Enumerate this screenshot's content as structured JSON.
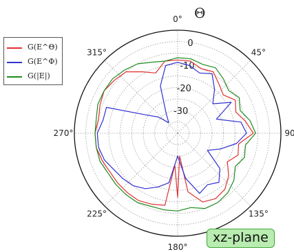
{
  "chart_data": {
    "type": "polar-line",
    "angle_symbol": "Θ",
    "angular_ticks": [
      "0°",
      "45°",
      "90°",
      "135°",
      "180°",
      "225°",
      "270°",
      "315°"
    ],
    "radial_tick_labels": [
      "0",
      "-10",
      "-20",
      "-30"
    ],
    "radial_range_db": [
      -40,
      5
    ],
    "grid": true,
    "legend": {
      "position": "top-left",
      "entries": [
        {
          "label": "G(E^Θ)",
          "color": "#e03030"
        },
        {
          "label": "G(E^Φ)",
          "color": "#3030d0"
        },
        {
          "label": "G(|E|)",
          "color": "#1f8a1f"
        }
      ]
    },
    "annotation": "xz-plane",
    "series": [
      {
        "name": "G(E^Θ)",
        "color": "#e03030",
        "theta_deg": [
          0,
          10,
          20,
          30,
          40,
          50,
          60,
          70,
          80,
          90,
          100,
          110,
          120,
          130,
          140,
          150,
          160,
          170,
          175,
          180,
          185,
          190,
          200,
          210,
          220,
          230,
          240,
          250,
          260,
          270,
          280,
          290,
          300,
          310,
          320,
          330,
          340,
          350,
          360
        ],
        "gain_db": [
          -8,
          -8,
          -10,
          -9,
          -12,
          -14,
          -11,
          -13,
          -10,
          -7,
          -13,
          -12,
          -15,
          -11,
          -8,
          -7,
          -8,
          -14,
          -30,
          -12,
          -26,
          -8,
          -7,
          -6,
          -6,
          -6,
          -6,
          -5,
          -4,
          -4,
          -5,
          -4,
          -3,
          -4,
          -5,
          -9,
          -12,
          -8,
          -8
        ]
      },
      {
        "name": "G(E^Φ)",
        "color": "#3030d0",
        "theta_deg": [
          0,
          10,
          20,
          30,
          40,
          50,
          60,
          70,
          80,
          90,
          100,
          110,
          120,
          130,
          140,
          150,
          160,
          170,
          180,
          190,
          200,
          210,
          220,
          230,
          240,
          250,
          260,
          270,
          280,
          290,
          300,
          310,
          320,
          330,
          340,
          350,
          360
        ],
        "gain_db": [
          -9,
          -10,
          -12,
          -10,
          -15,
          -20,
          -13,
          -22,
          -12,
          -10,
          -14,
          -20,
          -25,
          -16,
          -12,
          -14,
          -12,
          -20,
          -30,
          -18,
          -15,
          -12,
          -10,
          -9,
          -8,
          -6,
          -5,
          -5,
          -7,
          -7,
          -24,
          -29,
          -34,
          -30,
          -18,
          -10,
          -9
        ]
      },
      {
        "name": "G(|E|)",
        "color": "#1f8a1f",
        "theta_deg": [
          0,
          10,
          20,
          30,
          40,
          50,
          60,
          70,
          80,
          90,
          100,
          110,
          120,
          130,
          140,
          150,
          160,
          170,
          180,
          190,
          200,
          210,
          220,
          230,
          240,
          250,
          260,
          270,
          280,
          290,
          300,
          310,
          320,
          330,
          340,
          350,
          360
        ],
        "gain_db": [
          -7,
          -7,
          -8,
          -7,
          -9,
          -11,
          -9,
          -11,
          -8,
          -6,
          -10,
          -9,
          -11,
          -8,
          -6,
          -5,
          -5,
          -7,
          -6,
          -6,
          -6,
          -5,
          -5,
          -5,
          -5,
          -4,
          -4,
          -4,
          -4,
          -3,
          -3,
          -3,
          -4,
          -5,
          -7,
          -8,
          -7
        ]
      }
    ]
  }
}
